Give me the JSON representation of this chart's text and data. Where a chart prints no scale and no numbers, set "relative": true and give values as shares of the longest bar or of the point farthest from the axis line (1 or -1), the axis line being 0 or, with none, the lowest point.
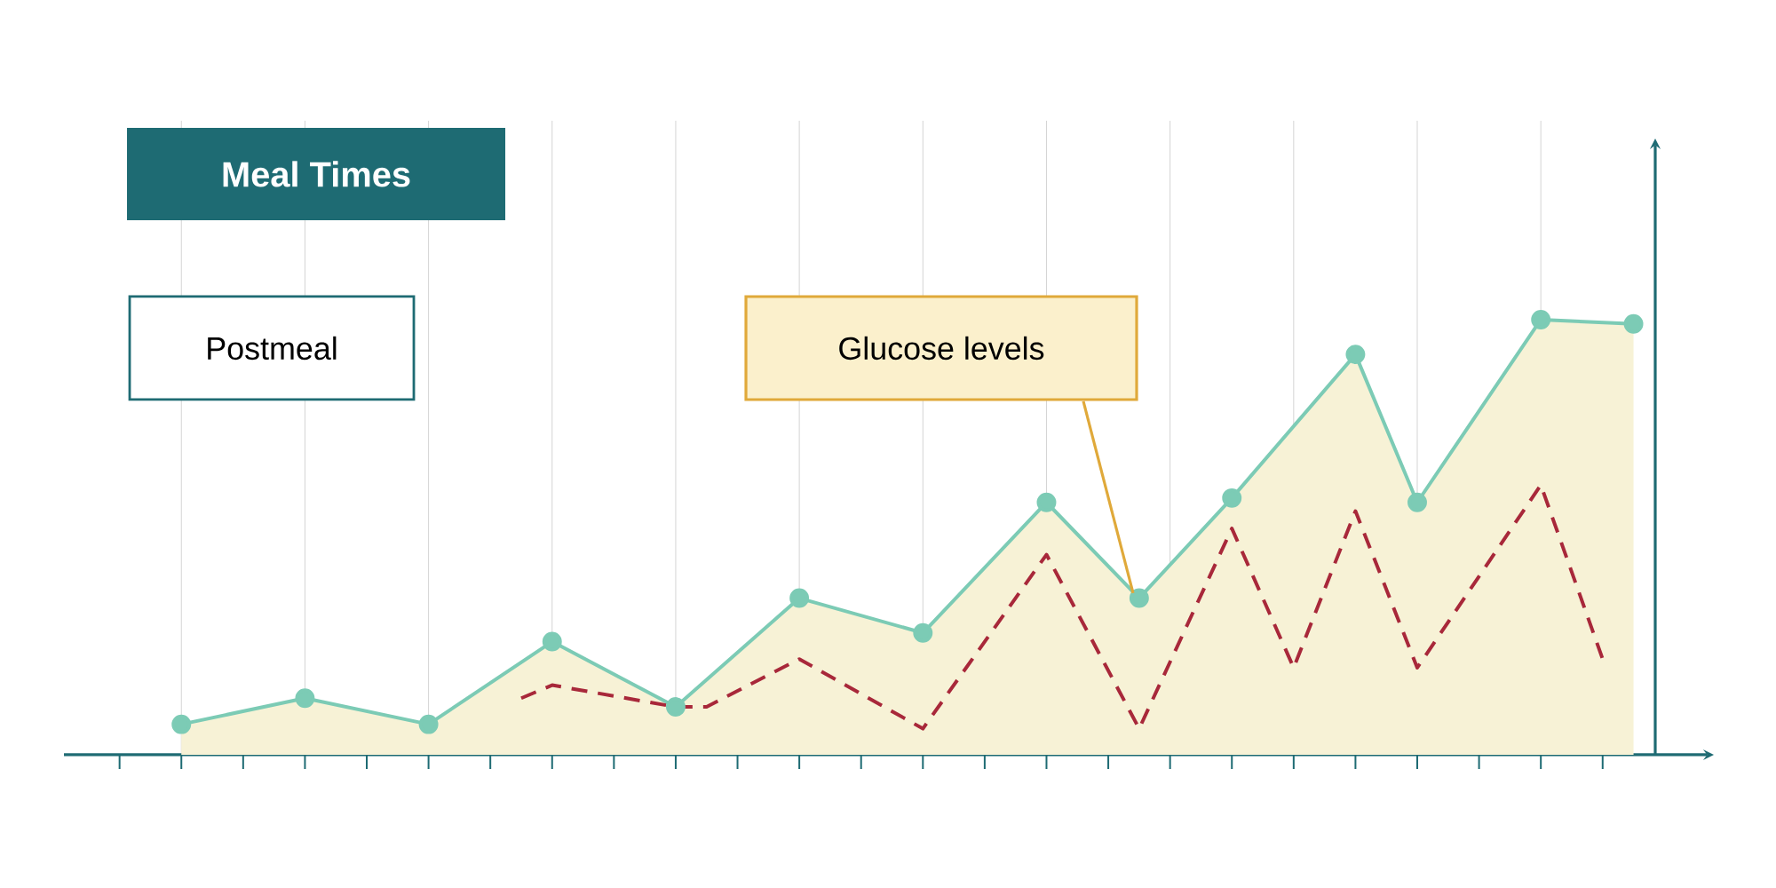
{
  "chart_data": {
    "type": "line",
    "title": "Meal Times",
    "relative": true,
    "grid": true,
    "tick_labels": false,
    "annotations": [
      "Postmeal",
      "Glucose levels"
    ],
    "categories": [
      null,
      null,
      null,
      null,
      null,
      null,
      null,
      null,
      null,
      null,
      null,
      null,
      null,
      null,
      null,
      null,
      null,
      null,
      null,
      null,
      null,
      null,
      null,
      null,
      null,
      null,
      null,
      null,
      null,
      null,
      null,
      null,
      null,
      null,
      null,
      null,
      null,
      null,
      null,
      null,
      null,
      null,
      null,
      null,
      null,
      null,
      null,
      null
    ],
    "series": [
      {
        "type": "area",
        "color": "#7ccbb5",
        "marker": "circle",
        "values": [
          0.07,
          null,
          null,
          null,
          0.13,
          null,
          null,
          null,
          0.07,
          null,
          null,
          null,
          0.26,
          null,
          null,
          null,
          0.11,
          null,
          null,
          null,
          0.36,
          null,
          null,
          null,
          0.28,
          null,
          null,
          null,
          0.58,
          null,
          null,
          0.36,
          null,
          null,
          0.59,
          null,
          null,
          null,
          0.92,
          null,
          0.58,
          null,
          null,
          null,
          1.0,
          null,
          null,
          0.99
        ]
      },
      {
        "color": "#a8283a",
        "line_style": "dashed",
        "marker": "none",
        "values": [
          null,
          null,
          null,
          null,
          null,
          null,
          null,
          null,
          null,
          null,
          null,
          0.13,
          0.16,
          null,
          null,
          null,
          0.11,
          0.11,
          null,
          null,
          0.22,
          null,
          null,
          null,
          0.06,
          null,
          null,
          null,
          0.46,
          null,
          null,
          0.06,
          null,
          null,
          0.52,
          null,
          0.2,
          null,
          0.56,
          null,
          0.2,
          null,
          null,
          null,
          0.62,
          null,
          0.22,
          null
        ]
      }
    ]
  }
}
